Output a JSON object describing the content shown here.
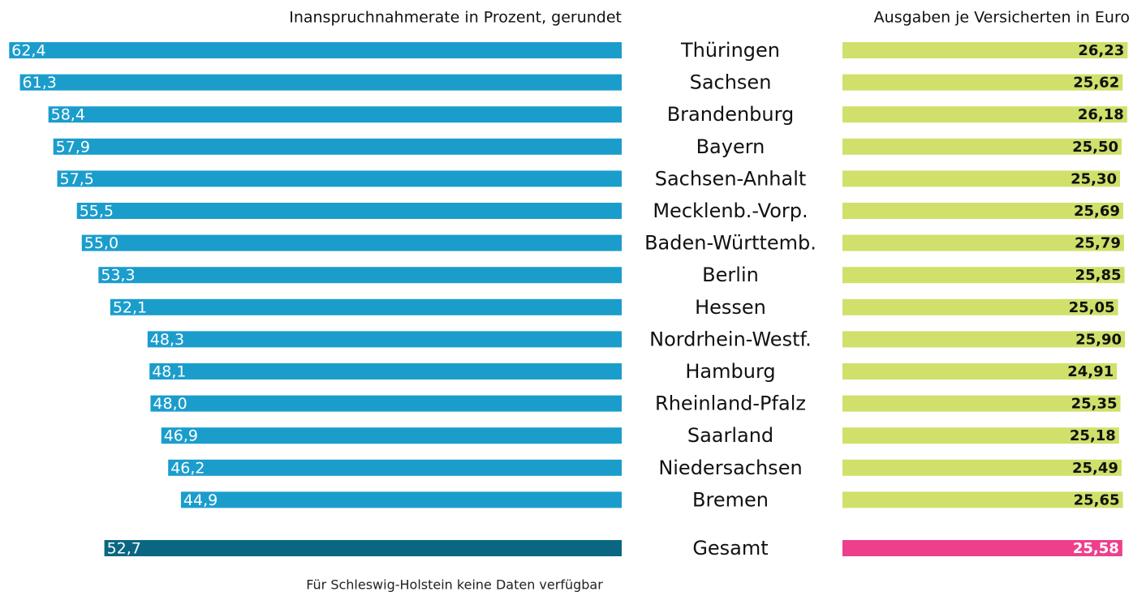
{
  "chart_data": {
    "type": "mirrored-bar",
    "footnote": "Für Schleswig-Holstein keine Daten verfügbar",
    "categories": [
      "Thüringen",
      "Sachsen",
      "Brandenburg",
      "Bayern",
      "Sachsen-Anhalt",
      "Mecklenb.-Vorp.",
      "Baden-Württemb.",
      "Berlin",
      "Hessen",
      "Nordrhein-Westf.",
      "Hamburg",
      "Rheinland-Pfalz",
      "Saarland",
      "Niedersachsen",
      "Bremen",
      "Gesamt"
    ],
    "series": [
      {
        "name": "Inanspruchnahmerate in Prozent, gerundet",
        "color": "#1b9dcc",
        "total_color": "#0b6781",
        "xlim": [
          0,
          63
        ],
        "values": [
          62.4,
          61.3,
          58.4,
          57.9,
          57.5,
          55.5,
          55.0,
          53.3,
          52.1,
          48.3,
          48.1,
          48.0,
          46.9,
          46.2,
          44.9,
          52.7
        ],
        "value_labels": [
          "62,4",
          "61,3",
          "58,4",
          "57,9",
          "57,5",
          "55,5",
          "55,0",
          "53,3",
          "52,1",
          "48,3",
          "48,1",
          "48,0",
          "46,9",
          "46,2",
          "44,9",
          "52,7"
        ]
      },
      {
        "name": "Ausgaben je Versicherten in Euro",
        "color": "#d0e06b",
        "total_color": "#ee3f8c",
        "xlim": [
          -9,
          26.5
        ],
        "values": [
          26.23,
          25.62,
          26.18,
          25.5,
          25.3,
          25.69,
          25.79,
          25.85,
          25.05,
          25.9,
          24.91,
          25.35,
          25.18,
          25.49,
          25.65,
          25.58
        ],
        "value_labels": [
          "26,23",
          "25,62",
          "26,18",
          "25,50",
          "25,30",
          "25,69",
          "25,79",
          "25,85",
          "25,05",
          "25,90",
          "24,91",
          "25,35",
          "25,18",
          "25,49",
          "25,65",
          "25,58"
        ]
      }
    ]
  }
}
